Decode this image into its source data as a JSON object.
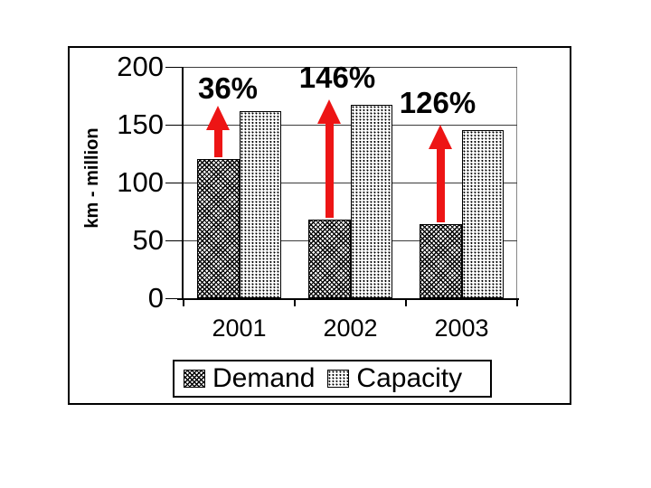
{
  "chart_data": {
    "type": "bar",
    "ylabel": "km - million",
    "categories": [
      "2001",
      "2002",
      "2003"
    ],
    "series": [
      {
        "name": "Demand",
        "pattern": "diagonal-crosshatch",
        "values": [
          120,
          68,
          64
        ]
      },
      {
        "name": "Capacity",
        "pattern": "dotted",
        "values": [
          162,
          167,
          145
        ]
      }
    ],
    "annotations": [
      {
        "label": "36%",
        "category": "2001"
      },
      {
        "label": "146%",
        "category": "2002"
      },
      {
        "label": "126%",
        "category": "2003"
      }
    ],
    "yticks": [
      "0",
      "50",
      "100",
      "150",
      "200"
    ],
    "ylim": [
      0,
      200
    ],
    "grid": true,
    "legend_position": "bottom",
    "colors": {
      "arrow": "#ed1515",
      "text": "#000000",
      "bar_border": "#000000",
      "background": "#ffffff"
    }
  }
}
